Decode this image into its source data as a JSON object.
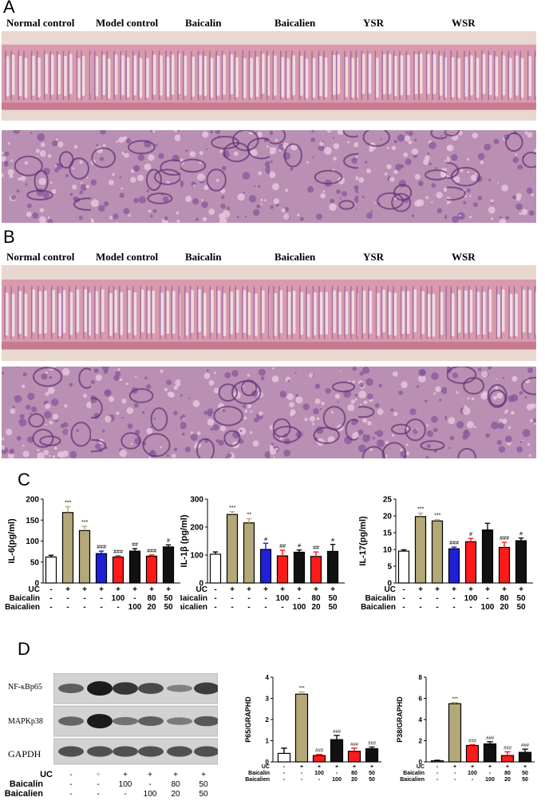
{
  "panels": {
    "A": {
      "letter": "A",
      "headers": [
        "Normal control",
        "Model control",
        "Baicalin",
        "Baicalien",
        "YSR",
        "WSR"
      ]
    },
    "B": {
      "letter": "B",
      "headers": [
        "Normal control",
        "Model control",
        "Baicalin",
        "Baicalien",
        "YSR",
        "WSR"
      ]
    },
    "C": {
      "letter": "C"
    },
    "D": {
      "letter": "D",
      "blot_labels": [
        "NF-κBp65",
        "MAPKp38",
        "GAPDH"
      ]
    }
  },
  "colors": {
    "white": "#ffffff",
    "tan": "#b5a878",
    "blue": "#1f1fd8",
    "red": "#ff1a1a",
    "black": "#111111",
    "tissue_pink": "#d89aac",
    "tissue_purple": "#8a5a9c",
    "tissue_bg": "#e9d8cf"
  },
  "chart_data": [
    {
      "type": "bar",
      "ylabel": "IL-6(pg/ml)",
      "ylim": [
        0,
        200
      ],
      "yticks": [
        "0",
        "50",
        "100",
        "150",
        "200"
      ],
      "values": [
        62,
        168,
        125,
        70,
        62,
        76,
        64,
        86
      ],
      "errors": [
        4,
        14,
        10,
        6,
        3,
        6,
        3,
        5
      ],
      "colors": [
        "white",
        "tan",
        "tan",
        "blue",
        "red",
        "black",
        "red",
        "black"
      ],
      "annotations": [
        "",
        "***",
        "***",
        "###",
        "###",
        "##",
        "###",
        "#"
      ],
      "row_labels": [
        "UC",
        "Baicalin",
        "Baicalien"
      ],
      "uc": [
        "-",
        "+",
        "+",
        "+",
        "+",
        "+",
        "+",
        "+"
      ],
      "baicalin": [
        "-",
        "-",
        "-",
        "-",
        "100",
        "-",
        "80",
        "50"
      ],
      "baicalien": [
        "-",
        "-",
        "-",
        "-",
        "-",
        "100",
        "20",
        "50"
      ]
    },
    {
      "type": "bar",
      "ylabel": "IL-1β (pg/ml)",
      "ylim": [
        0,
        300
      ],
      "yticks": [
        "0",
        "100",
        "200",
        "300"
      ],
      "values": [
        103,
        245,
        215,
        120,
        97,
        110,
        95,
        113
      ],
      "errors": [
        8,
        10,
        15,
        22,
        20,
        8,
        16,
        25
      ],
      "colors": [
        "white",
        "tan",
        "tan",
        "blue",
        "red",
        "black",
        "red",
        "black"
      ],
      "annotations": [
        "",
        "***",
        "**",
        "#",
        "##",
        "#",
        "##",
        "#"
      ],
      "row_labels": [
        "UC",
        "Baicalin",
        "Baicalien"
      ],
      "uc": [
        "-",
        "+",
        "+",
        "+",
        "+",
        "+",
        "+",
        "+"
      ],
      "baicalin": [
        "-",
        "-",
        "-",
        "-",
        "100",
        "-",
        "80",
        "50"
      ],
      "baicalien": [
        "-",
        "-",
        "-",
        "-",
        "-",
        "100",
        "20",
        "50"
      ]
    },
    {
      "type": "bar",
      "ylabel": "IL-17(pg/ml)",
      "ylim": [
        0,
        25
      ],
      "yticks": [
        "0",
        "5",
        "10",
        "15",
        "20",
        "25"
      ],
      "values": [
        9.5,
        19.8,
        18.5,
        10.2,
        12.3,
        15.8,
        10.6,
        12.6
      ],
      "errors": [
        0.4,
        1.0,
        0.4,
        0.5,
        1.0,
        2.0,
        1.5,
        0.8
      ],
      "colors": [
        "white",
        "tan",
        "tan",
        "blue",
        "red",
        "black",
        "red",
        "black"
      ],
      "annotations": [
        "",
        "***",
        "***",
        "###",
        "#",
        "",
        "###",
        "#"
      ],
      "row_labels": [
        "UC",
        "Baicalin",
        "Baicalien"
      ],
      "uc": [
        "-",
        "+",
        "+",
        "+",
        "+",
        "+",
        "+",
        "+"
      ],
      "baicalin": [
        "-",
        "-",
        "-",
        "-",
        "100",
        "-",
        "80",
        "50"
      ],
      "baicalien": [
        "-",
        "-",
        "-",
        "-",
        "-",
        "100",
        "20",
        "50"
      ]
    },
    {
      "type": "bar",
      "ylabel": "P65/GRAPHD",
      "ylim": [
        0,
        4
      ],
      "yticks": [
        "0",
        "1",
        "2",
        "3",
        "4"
      ],
      "values": [
        0.4,
        3.2,
        0.3,
        1.05,
        0.5,
        0.62
      ],
      "errors": [
        0.25,
        0.1,
        0.05,
        0.2,
        0.15,
        0.08
      ],
      "colors": [
        "white",
        "tan",
        "red",
        "black",
        "red",
        "black"
      ],
      "annotations": [
        "",
        "***",
        "###",
        "###",
        "###",
        "###"
      ],
      "row_labels": [
        "UC",
        "Baicalin",
        "Baicalien"
      ],
      "uc": [
        "-",
        "+",
        "+",
        "+",
        "+",
        "+"
      ],
      "baicalin": [
        "-",
        "-",
        "100",
        "-",
        "80",
        "50"
      ],
      "baicalien": [
        "-",
        "-",
        "-",
        "100",
        "20",
        "50"
      ]
    },
    {
      "type": "bar",
      "ylabel": "P38/GRAPHD",
      "ylim": [
        0,
        8
      ],
      "yticks": [
        "0",
        "2",
        "4",
        "6",
        "8"
      ],
      "values": [
        0.1,
        5.5,
        1.55,
        1.7,
        0.6,
        0.9
      ],
      "errors": [
        0.05,
        0.1,
        0.08,
        0.2,
        0.35,
        0.3
      ],
      "colors": [
        "white",
        "tan",
        "red",
        "black",
        "red",
        "black"
      ],
      "annotations": [
        "",
        "***",
        "###",
        "###",
        "###",
        "###"
      ],
      "row_labels": [
        "UC",
        "Baicalin",
        "Baicalien"
      ],
      "uc": [
        "-",
        "+",
        "+",
        "+",
        "+",
        "+"
      ],
      "baicalin": [
        "-",
        "-",
        "100",
        "-",
        "80",
        "50"
      ],
      "baicalien": [
        "-",
        "-",
        "-",
        "100",
        "20",
        "50"
      ]
    }
  ],
  "blot": {
    "row_labels": [
      "UC",
      "Baicalin",
      "Baicalien"
    ],
    "uc": [
      "-",
      "+",
      "+",
      "+",
      "+",
      "+"
    ],
    "baicalin": [
      "-",
      "-",
      "100",
      "-",
      "80",
      "50"
    ],
    "baicalien": [
      "-",
      "-",
      "-",
      "100",
      "20",
      "50"
    ],
    "band_intensity": {
      "NF-κBp65": [
        0.5,
        1.0,
        0.8,
        0.65,
        0.25,
        0.75
      ],
      "MAPKp38": [
        0.45,
        1.0,
        0.35,
        0.5,
        0.3,
        0.55
      ],
      "GAPDH": [
        0.6,
        0.6,
        0.6,
        0.6,
        0.6,
        0.6
      ]
    }
  }
}
